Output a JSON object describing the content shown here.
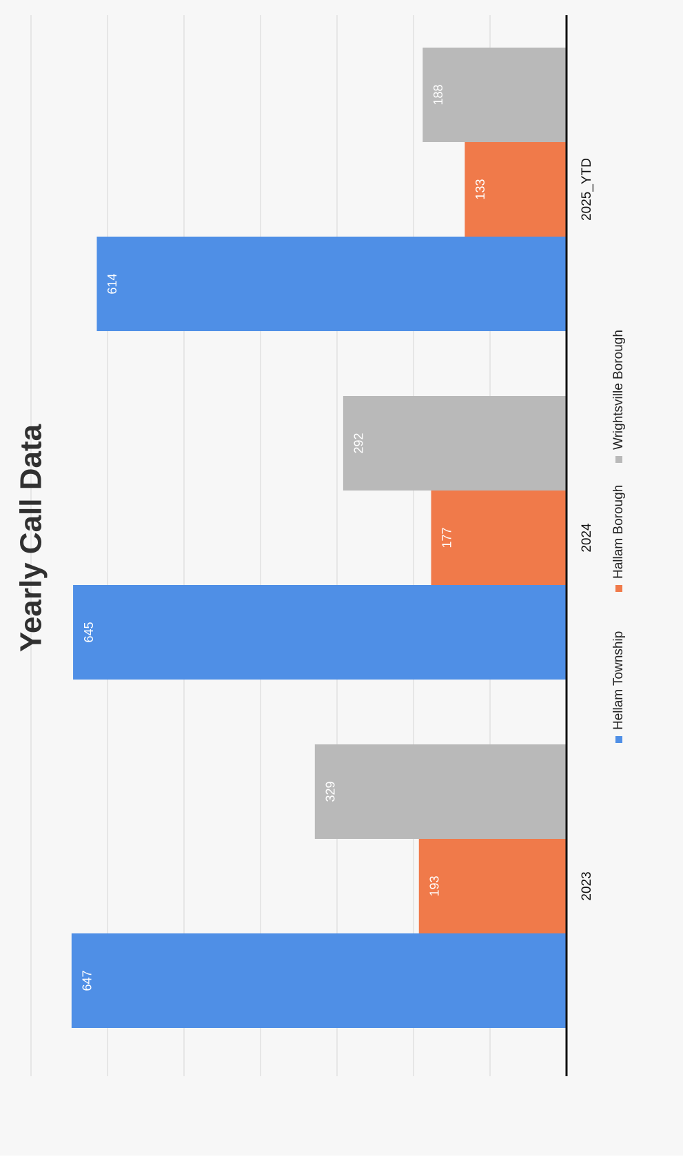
{
  "chart_data": {
    "type": "bar",
    "title": "Yearly Call Data",
    "categories": [
      "2023",
      "2024",
      "2025_YTD"
    ],
    "series": [
      {
        "name": "Hellam Township",
        "values": [
          647,
          645,
          614
        ],
        "color": "#4f8fe6"
      },
      {
        "name": "Hallam Borough",
        "values": [
          193,
          177,
          133
        ],
        "color": "#f07a4a"
      },
      {
        "name": "Wrightsville Borough",
        "values": [
          329,
          292,
          188
        ],
        "color": "#b9b9b9"
      }
    ],
    "ylim": [
      0,
      700
    ],
    "grid": true,
    "legend": "bottom",
    "orientation": "rotated"
  }
}
